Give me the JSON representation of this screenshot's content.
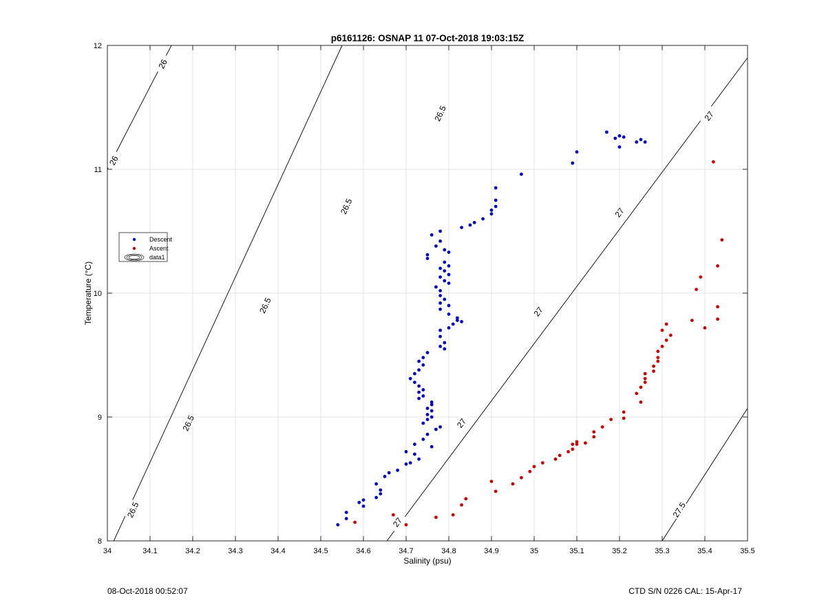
{
  "chart_data": {
    "type": "scatter",
    "title": "p6161126: OSNAP 11 07-Oct-2018 19:03:15Z",
    "xlabel": "Salinity (psu)",
    "ylabel": "Temperature (°C)",
    "xlim": [
      34,
      35.5
    ],
    "ylim": [
      8,
      12
    ],
    "xticks": [
      "34",
      "34.1",
      "34.2",
      "34.3",
      "34.4",
      "34.5",
      "34.6",
      "34.7",
      "34.8",
      "34.9",
      "35",
      "35.1",
      "35.2",
      "35.3",
      "35.4",
      "35.5"
    ],
    "yticks": [
      "8",
      "9",
      "10",
      "11",
      "12"
    ],
    "grid": true,
    "legend_placement": "left",
    "legend": [
      {
        "label": "Descent",
        "marker": "dot",
        "color": "#0000cc"
      },
      {
        "label": "Ascent",
        "marker": "dot",
        "color": "#cc0000"
      },
      {
        "label": "data1",
        "marker": "contour"
      }
    ],
    "contours": [
      {
        "level": 26,
        "label": "26",
        "points": [
          [
            34.0,
            11.0
          ],
          [
            34.15,
            12.0
          ]
        ],
        "label_positions": [
          [
            34.015,
            11.07
          ],
          [
            34.13,
            11.85
          ]
        ]
      },
      {
        "level": 26.5,
        "label": "26.5",
        "points": [
          [
            34.015,
            8.0
          ],
          [
            34.55,
            12.0
          ]
        ],
        "label_positions": [
          [
            34.06,
            8.25
          ],
          [
            34.19,
            8.95
          ],
          [
            34.37,
            9.9
          ],
          [
            34.56,
            10.7
          ],
          [
            34.78,
            11.45
          ]
        ]
      },
      {
        "level": 27,
        "label": "27",
        "points": [
          [
            34.655,
            8.0
          ],
          [
            35.5,
            11.9
          ]
        ],
        "label_positions": [
          [
            34.68,
            8.15
          ],
          [
            34.83,
            8.95
          ],
          [
            35.01,
            9.85
          ],
          [
            35.2,
            10.65
          ],
          [
            35.41,
            11.43
          ]
        ]
      },
      {
        "level": 27.5,
        "label": "27.5",
        "points": [
          [
            35.3,
            8.0
          ],
          [
            35.5,
            9.07
          ]
        ],
        "label_positions": [
          [
            35.34,
            8.25
          ]
        ]
      }
    ],
    "series": [
      {
        "name": "Descent",
        "color": "#0000cc",
        "points": [
          [
            35.17,
            11.3
          ],
          [
            35.2,
            11.27
          ],
          [
            35.21,
            11.26
          ],
          [
            35.19,
            11.25
          ],
          [
            35.25,
            11.24
          ],
          [
            35.24,
            11.22
          ],
          [
            35.26,
            11.22
          ],
          [
            35.2,
            11.18
          ],
          [
            35.1,
            11.14
          ],
          [
            35.09,
            11.05
          ],
          [
            34.97,
            10.96
          ],
          [
            34.91,
            10.85
          ],
          [
            34.91,
            10.75
          ],
          [
            34.91,
            10.7
          ],
          [
            34.9,
            10.67
          ],
          [
            34.9,
            10.64
          ],
          [
            34.88,
            10.6
          ],
          [
            34.86,
            10.57
          ],
          [
            34.85,
            10.55
          ],
          [
            34.83,
            10.53
          ],
          [
            34.78,
            10.5
          ],
          [
            34.76,
            10.47
          ],
          [
            34.78,
            10.42
          ],
          [
            34.77,
            10.38
          ],
          [
            34.79,
            10.35
          ],
          [
            34.8,
            10.33
          ],
          [
            34.75,
            10.31
          ],
          [
            34.75,
            10.28
          ],
          [
            34.79,
            10.25
          ],
          [
            34.8,
            10.22
          ],
          [
            34.78,
            10.2
          ],
          [
            34.79,
            10.18
          ],
          [
            34.8,
            10.15
          ],
          [
            34.78,
            10.13
          ],
          [
            34.79,
            10.1
          ],
          [
            34.8,
            10.08
          ],
          [
            34.77,
            10.05
          ],
          [
            34.78,
            10.02
          ],
          [
            34.78,
            9.98
          ],
          [
            34.79,
            9.95
          ],
          [
            34.78,
            9.92
          ],
          [
            34.8,
            9.9
          ],
          [
            34.78,
            9.87
          ],
          [
            34.8,
            9.83
          ],
          [
            34.82,
            9.8
          ],
          [
            34.82,
            9.78
          ],
          [
            34.83,
            9.77
          ],
          [
            34.81,
            9.75
          ],
          [
            34.8,
            9.72
          ],
          [
            34.78,
            9.7
          ],
          [
            34.78,
            9.65
          ],
          [
            34.79,
            9.6
          ],
          [
            34.78,
            9.57
          ],
          [
            34.79,
            9.55
          ],
          [
            34.75,
            9.52
          ],
          [
            34.74,
            9.48
          ],
          [
            34.73,
            9.45
          ],
          [
            34.74,
            9.42
          ],
          [
            34.73,
            9.38
          ],
          [
            34.72,
            9.35
          ],
          [
            34.71,
            9.31
          ],
          [
            34.72,
            9.28
          ],
          [
            34.73,
            9.25
          ],
          [
            34.74,
            9.22
          ],
          [
            34.73,
            9.2
          ],
          [
            34.74,
            9.17
          ],
          [
            34.73,
            9.15
          ],
          [
            34.76,
            9.12
          ],
          [
            34.76,
            9.1
          ],
          [
            34.75,
            9.07
          ],
          [
            34.76,
            9.05
          ],
          [
            34.75,
            9.02
          ],
          [
            34.76,
            9.0
          ],
          [
            34.75,
            8.98
          ],
          [
            34.74,
            8.95
          ],
          [
            34.78,
            8.92
          ],
          [
            34.77,
            8.9
          ],
          [
            34.75,
            8.86
          ],
          [
            34.74,
            8.82
          ],
          [
            34.72,
            8.78
          ],
          [
            34.76,
            8.76
          ],
          [
            34.7,
            8.72
          ],
          [
            34.72,
            8.7
          ],
          [
            34.73,
            8.66
          ],
          [
            34.71,
            8.63
          ],
          [
            34.7,
            8.62
          ],
          [
            34.68,
            8.57
          ],
          [
            34.66,
            8.55
          ],
          [
            34.65,
            8.52
          ],
          [
            34.63,
            8.46
          ],
          [
            34.64,
            8.41
          ],
          [
            34.64,
            8.38
          ],
          [
            34.63,
            8.35
          ],
          [
            34.6,
            8.33
          ],
          [
            34.59,
            8.31
          ],
          [
            34.6,
            8.28
          ],
          [
            34.56,
            8.23
          ],
          [
            34.56,
            8.18
          ],
          [
            34.54,
            8.13
          ]
        ]
      },
      {
        "name": "Ascent",
        "color": "#cc0000",
        "points": [
          [
            35.42,
            11.06
          ],
          [
            35.44,
            10.43
          ],
          [
            35.43,
            10.22
          ],
          [
            35.39,
            10.13
          ],
          [
            35.38,
            10.03
          ],
          [
            35.43,
            9.89
          ],
          [
            35.43,
            9.79
          ],
          [
            35.37,
            9.78
          ],
          [
            35.4,
            9.72
          ],
          [
            35.31,
            9.75
          ],
          [
            35.3,
            9.7
          ],
          [
            35.32,
            9.66
          ],
          [
            35.31,
            9.62
          ],
          [
            35.3,
            9.57
          ],
          [
            35.29,
            9.53
          ],
          [
            35.29,
            9.48
          ],
          [
            35.29,
            9.45
          ],
          [
            35.28,
            9.41
          ],
          [
            35.28,
            9.37
          ],
          [
            35.26,
            9.35
          ],
          [
            35.26,
            9.31
          ],
          [
            35.26,
            9.28
          ],
          [
            35.25,
            9.24
          ],
          [
            35.24,
            9.19
          ],
          [
            35.25,
            9.12
          ],
          [
            35.21,
            9.04
          ],
          [
            35.21,
            8.99
          ],
          [
            35.18,
            8.98
          ],
          [
            35.16,
            8.92
          ],
          [
            35.14,
            8.88
          ],
          [
            35.14,
            8.84
          ],
          [
            35.12,
            8.79
          ],
          [
            35.1,
            8.8
          ],
          [
            35.1,
            8.78
          ],
          [
            35.09,
            8.78
          ],
          [
            35.09,
            8.74
          ],
          [
            35.08,
            8.72
          ],
          [
            35.06,
            8.69
          ],
          [
            35.05,
            8.66
          ],
          [
            35.02,
            8.63
          ],
          [
            35.0,
            8.6
          ],
          [
            34.99,
            8.56
          ],
          [
            34.97,
            8.51
          ],
          [
            34.95,
            8.46
          ],
          [
            34.91,
            8.4
          ],
          [
            34.9,
            8.48
          ],
          [
            34.84,
            8.34
          ],
          [
            34.83,
            8.29
          ],
          [
            34.81,
            8.21
          ],
          [
            34.77,
            8.19
          ],
          [
            34.7,
            8.13
          ],
          [
            34.67,
            8.21
          ],
          [
            34.58,
            8.15
          ]
        ]
      }
    ]
  },
  "footer": {
    "timestamp": "08-Oct-2018 00:52:07",
    "instrument": "CTD S/N 0226  CAL: 15-Apr-17"
  }
}
